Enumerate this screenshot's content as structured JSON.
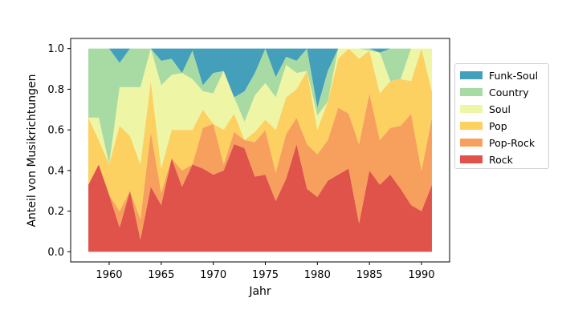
{
  "chart_data": {
    "type": "area",
    "stacked": true,
    "normalized": true,
    "title": "",
    "xlabel": "Jahr",
    "ylabel": "Anteil von Musikrichtungen",
    "xlim": [
      1956.3,
      1992.7
    ],
    "ylim": [
      -0.05,
      1.05
    ],
    "xticks": [
      1960,
      1965,
      1970,
      1975,
      1980,
      1985,
      1990
    ],
    "xtick_labels": [
      "1960",
      "1965",
      "1970",
      "1975",
      "1980",
      "1985",
      "1990"
    ],
    "yticks": [
      0.0,
      0.2,
      0.4,
      0.6,
      0.8,
      1.0
    ],
    "ytick_labels": [
      "0.0",
      "0.2",
      "0.4",
      "0.6",
      "0.8",
      "1.0"
    ],
    "grid": false,
    "legend_position": "right",
    "x": [
      1958,
      1959,
      1960,
      1961,
      1962,
      1963,
      1964,
      1965,
      1966,
      1967,
      1968,
      1969,
      1970,
      1971,
      1972,
      1973,
      1974,
      1975,
      1976,
      1977,
      1978,
      1979,
      1980,
      1981,
      1982,
      1983,
      1984,
      1985,
      1986,
      1987,
      1988,
      1989,
      1990,
      1991
    ],
    "series": [
      {
        "name": "Rock",
        "color": "#e0534a",
        "values": [
          0.33,
          0.43,
          0.28,
          0.12,
          0.3,
          0.06,
          0.32,
          0.23,
          0.46,
          0.32,
          0.43,
          0.41,
          0.38,
          0.4,
          0.53,
          0.51,
          0.37,
          0.38,
          0.25,
          0.36,
          0.53,
          0.31,
          0.27,
          0.35,
          0.38,
          0.41,
          0.14,
          0.4,
          0.33,
          0.38,
          0.31,
          0.23,
          0.2,
          0.33
        ]
      },
      {
        "name": "Pop-Rock",
        "color": "#f7a05d",
        "values": [
          0.0,
          0.0,
          0.0,
          0.08,
          0.0,
          0.1,
          0.27,
          0.06,
          0.0,
          0.08,
          0.0,
          0.2,
          0.25,
          0.03,
          0.06,
          0.04,
          0.17,
          0.22,
          0.14,
          0.22,
          0.13,
          0.22,
          0.21,
          0.2,
          0.33,
          0.27,
          0.39,
          0.38,
          0.22,
          0.23,
          0.31,
          0.45,
          0.2,
          0.33
        ]
      },
      {
        "name": "Pop",
        "color": "#fcd061",
        "values": [
          0.33,
          0.12,
          0.15,
          0.42,
          0.27,
          0.27,
          0.25,
          0.12,
          0.14,
          0.2,
          0.17,
          0.09,
          0.0,
          0.17,
          0.09,
          0.0,
          0.05,
          0.05,
          0.21,
          0.18,
          0.14,
          0.36,
          0.12,
          0.19,
          0.24,
          0.32,
          0.42,
          0.21,
          0.23,
          0.23,
          0.23,
          0.16,
          0.6,
          0.13
        ]
      },
      {
        "name": "Soul",
        "color": "#eef6a5",
        "values": [
          0.0,
          0.11,
          0.0,
          0.19,
          0.24,
          0.38,
          0.16,
          0.41,
          0.27,
          0.28,
          0.25,
          0.09,
          0.15,
          0.29,
          0.08,
          0.09,
          0.18,
          0.18,
          0.16,
          0.16,
          0.08,
          0.0,
          0.07,
          0.0,
          0.05,
          0.0,
          0.05,
          0.0,
          0.2,
          0.0,
          0.0,
          0.16,
          0.0,
          0.21
        ]
      },
      {
        "name": "Country",
        "color": "#a8dba3",
        "values": [
          0.34,
          0.34,
          0.57,
          0.12,
          0.19,
          0.19,
          0.0,
          0.12,
          0.08,
          0.0,
          0.14,
          0.03,
          0.1,
          0.0,
          0.0,
          0.15,
          0.11,
          0.17,
          0.1,
          0.04,
          0.06,
          0.11,
          0.04,
          0.15,
          0.0,
          0.0,
          0.0,
          0.01,
          0.0,
          0.16,
          0.15,
          0.0,
          0.0,
          0.0
        ]
      },
      {
        "name": "Funk-Soul",
        "color": "#449fba",
        "values": [
          0.0,
          0.0,
          0.0,
          0.07,
          0.0,
          0.0,
          0.0,
          0.06,
          0.05,
          0.12,
          0.01,
          0.18,
          0.12,
          0.11,
          0.24,
          0.21,
          0.12,
          0.0,
          0.14,
          0.04,
          0.06,
          0.0,
          0.29,
          0.11,
          0.0,
          0.0,
          0.0,
          0.0,
          0.02,
          0.0,
          0.0,
          0.0,
          0.0,
          0.0
        ]
      }
    ],
    "legend": [
      "Funk-Soul",
      "Country",
      "Soul",
      "Pop",
      "Pop-Rock",
      "Rock"
    ]
  }
}
